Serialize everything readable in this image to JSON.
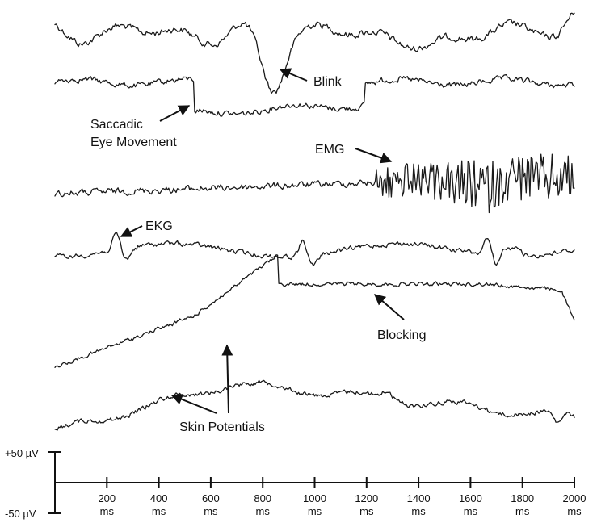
{
  "annotations": {
    "blink": "Blink",
    "saccade_line1": "Saccadic",
    "saccade_line2": "Eye Movement",
    "emg": "EMG",
    "ekg": "EKG",
    "blocking": "Blocking",
    "skin": "Skin Potentials"
  },
  "scale_bar": {
    "top_label": "+50 µV",
    "bottom_label": "-50 µV",
    "range_uV": [
      -50,
      50
    ]
  },
  "time_axis": {
    "unit": "ms",
    "range_ms": [
      0,
      2000
    ],
    "ticks": [
      200,
      400,
      600,
      800,
      1000,
      1200,
      1400,
      1600,
      1800,
      2000
    ]
  }
}
